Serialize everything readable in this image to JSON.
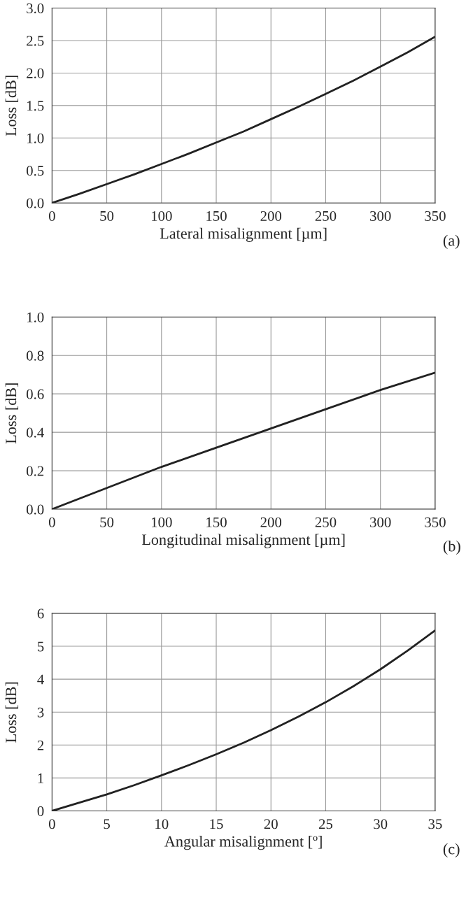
{
  "chart_data": [
    {
      "type": "line",
      "xlabel": "Lateral misalignment [µm]",
      "ylabel": "Loss [dB]",
      "annotations": [
        "(a)"
      ],
      "x": [
        0,
        25,
        50,
        75,
        100,
        125,
        150,
        175,
        200,
        225,
        250,
        275,
        300,
        325,
        350
      ],
      "series": [
        {
          "color": "#222222",
          "values": [
            0,
            0.14,
            0.29,
            0.44,
            0.6,
            0.76,
            0.93,
            1.1,
            1.29,
            1.48,
            1.68,
            1.88,
            2.1,
            2.32,
            2.56
          ]
        }
      ],
      "xlim": [
        0,
        350
      ],
      "xticks": [
        0,
        50,
        100,
        150,
        200,
        250,
        300,
        350
      ],
      "ylim": [
        0,
        3
      ],
      "yticks": [
        {
          "value": 0,
          "label": "0.0"
        },
        {
          "value": 0.5,
          "label": "0.5"
        },
        {
          "value": 1,
          "label": "1.0"
        },
        {
          "value": 1.5,
          "label": "1.5"
        },
        {
          "value": 2,
          "label": "2.0"
        },
        {
          "value": 2.5,
          "label": "2.5"
        },
        {
          "value": 3,
          "label": "3.0"
        }
      ],
      "grid": true,
      "legend": false,
      "line_style": "solid"
    },
    {
      "type": "line",
      "xlabel": "Longitudinal misalignment [µm]",
      "ylabel": "Loss [dB]",
      "annotations": [
        "(b)"
      ],
      "x": [
        0,
        50,
        100,
        150,
        200,
        250,
        300,
        350
      ],
      "series": [
        {
          "color": "#222222",
          "values": [
            0,
            0.11,
            0.22,
            0.32,
            0.42,
            0.52,
            0.62,
            0.71
          ]
        }
      ],
      "xlim": [
        0,
        350
      ],
      "xticks": [
        0,
        50,
        100,
        150,
        200,
        250,
        300,
        350
      ],
      "ylim": [
        0,
        1
      ],
      "yticks": [
        {
          "value": 0,
          "label": "0.0"
        },
        {
          "value": 0.2,
          "label": "0.2"
        },
        {
          "value": 0.4,
          "label": "0.4"
        },
        {
          "value": 0.6,
          "label": "0.6"
        },
        {
          "value": 0.8,
          "label": "0.8"
        },
        {
          "value": 1,
          "label": "1.0"
        }
      ],
      "grid": true,
      "legend": false,
      "line_style": "solid"
    },
    {
      "type": "line",
      "xlabel": "Angular misalignment [º]",
      "ylabel": "Loss [dB]",
      "annotations": [
        "(c)"
      ],
      "x": [
        0,
        2.5,
        5,
        7.5,
        10,
        12.5,
        15,
        17.5,
        20,
        22.5,
        25,
        27.5,
        30,
        32.5,
        35
      ],
      "series": [
        {
          "color": "#222222",
          "values": [
            0,
            0.25,
            0.5,
            0.78,
            1.08,
            1.39,
            1.72,
            2.07,
            2.45,
            2.86,
            3.3,
            3.78,
            4.3,
            4.87,
            5.48
          ]
        }
      ],
      "xlim": [
        0,
        35
      ],
      "xticks": [
        0,
        5,
        10,
        15,
        20,
        25,
        30,
        35
      ],
      "ylim": [
        0,
        6
      ],
      "yticks": [
        0,
        1,
        2,
        3,
        4,
        5,
        6
      ],
      "grid": true,
      "legend": false,
      "line_style": "solid"
    }
  ]
}
